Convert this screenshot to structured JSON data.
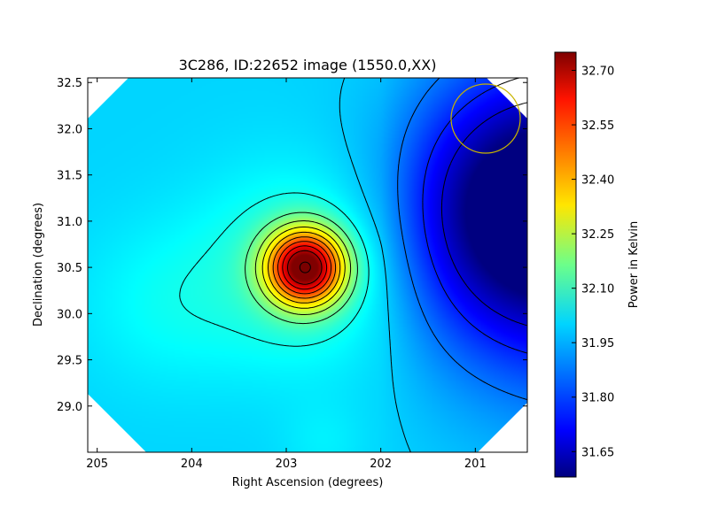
{
  "chart_data": {
    "type": "heatmap",
    "title": "3C286, ID:22652 image (1550.0,XX)",
    "xlabel": "Right Ascension (degrees)",
    "ylabel": "Declination (degrees)",
    "xlim": [
      205.1,
      200.45
    ],
    "ylim": [
      28.5,
      32.55
    ],
    "x_ticks": [
      205,
      204,
      203,
      202,
      201
    ],
    "x_tick_labels": [
      "205",
      "204",
      "203",
      "202",
      "201"
    ],
    "y_ticks": [
      29.0,
      29.5,
      30.0,
      30.5,
      31.0,
      31.5,
      32.0,
      32.5
    ],
    "y_tick_labels": [
      "29.0",
      "29.5",
      "30.0",
      "30.5",
      "31.0",
      "31.5",
      "32.0",
      "32.5"
    ],
    "colorbar": {
      "label": "Power in Kelvin",
      "range": [
        31.58,
        32.75
      ],
      "ticks": [
        31.65,
        31.8,
        31.95,
        32.1,
        32.25,
        32.4,
        32.55,
        32.7
      ],
      "tick_labels": [
        "31.65",
        "31.80",
        "31.95",
        "32.10",
        "32.25",
        "32.40",
        "32.55",
        "32.70"
      ],
      "colormap": "jet"
    },
    "field": {
      "background_level": 31.97,
      "peak": {
        "ra": 202.8,
        "dec": 30.5,
        "value": 32.72
      },
      "cold_region": {
        "ra": 200.5,
        "dec": 31.1,
        "value": 31.6
      },
      "contour_levels": [
        31.68,
        31.76,
        31.86,
        31.96,
        32.04,
        32.13,
        32.21,
        32.29,
        32.37,
        32.45,
        32.53,
        32.61,
        32.69
      ]
    },
    "beam_circle": {
      "ra": 200.9,
      "dec": 32.05,
      "color": "#c8b400"
    }
  }
}
